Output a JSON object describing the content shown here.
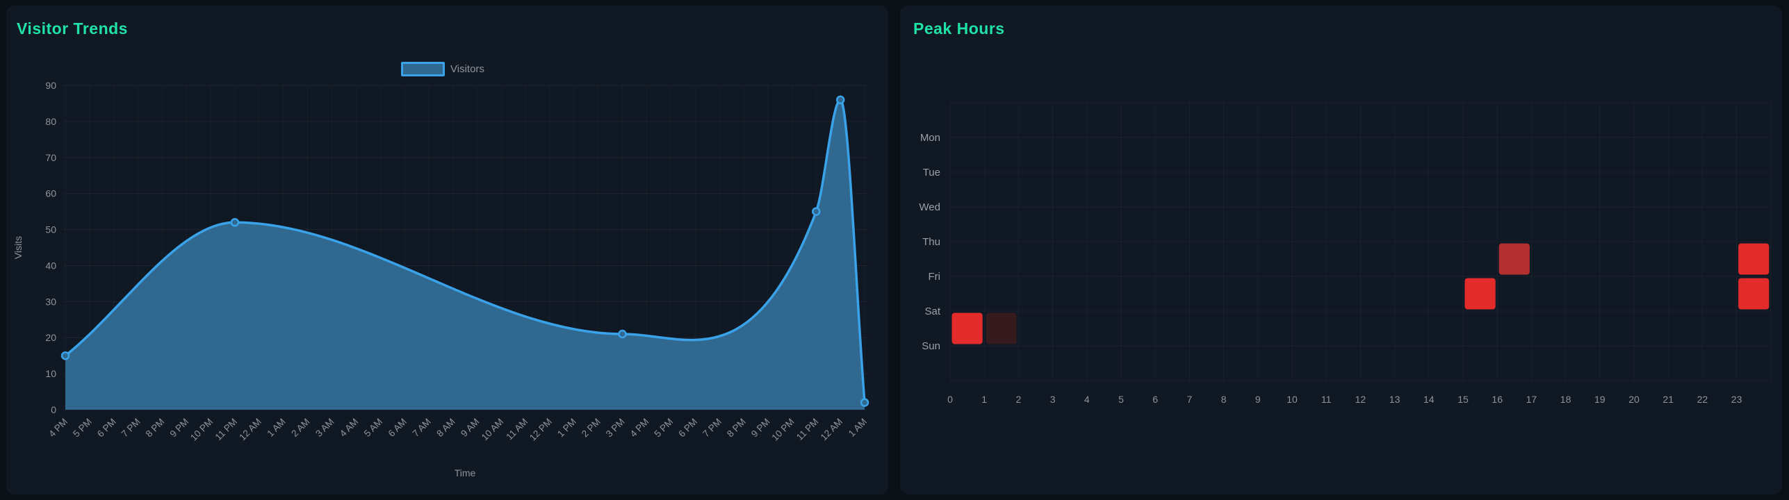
{
  "page": {
    "background": "#0b1017",
    "panel_background": "#101824",
    "title_color": "#1fe3a6",
    "axis_text_color": "#8e949c",
    "grid_color": "rgba(255,255,255,0.05)"
  },
  "chart_data": [
    {
      "type": "area",
      "title": "Visitor Trends",
      "xlabel": "Time",
      "ylabel": "Visits",
      "ylim": [
        0,
        90
      ],
      "y_ticks": [
        0,
        10,
        20,
        30,
        40,
        50,
        60,
        70,
        80,
        90
      ],
      "x_ticks": [
        "4 PM",
        "5 PM",
        "6 PM",
        "7 PM",
        "8 PM",
        "9 PM",
        "10 PM",
        "11 PM",
        "12 AM",
        "1 AM",
        "2 AM",
        "3 AM",
        "4 AM",
        "5 AM",
        "6 AM",
        "7 AM",
        "8 AM",
        "9 AM",
        "10 AM",
        "11 AM",
        "12 PM",
        "1 PM",
        "2 PM",
        "3 PM",
        "4 PM",
        "5 PM",
        "6 PM",
        "7 PM",
        "8 PM",
        "9 PM",
        "10 PM",
        "11 PM",
        "12 AM",
        "1 AM"
      ],
      "series": [
        {
          "name": "Visitors",
          "points": [
            {
              "tick_index": 0,
              "time": "4 PM",
              "value": 15
            },
            {
              "tick_index": 7,
              "time": "11 PM",
              "value": 52
            },
            {
              "tick_index": 23,
              "time": "3 PM",
              "value": 21
            },
            {
              "tick_index": 31,
              "time": "11 PM",
              "value": 55
            },
            {
              "tick_index": 32,
              "time": "12 AM",
              "value": 86
            },
            {
              "tick_index": 33,
              "time": "1 AM",
              "value": 2
            }
          ]
        }
      ],
      "colors": {
        "line": "#3aa2e9",
        "fill": "#31688f",
        "marker_fill": "#31688f"
      },
      "legend_position": "top-center",
      "grid": true
    },
    {
      "type": "heatmap",
      "title": "Peak Hours",
      "y_ticks": [
        "Mon",
        "Tue",
        "Wed",
        "Thu",
        "Fri",
        "Sat",
        "Sun"
      ],
      "x_ticks": [
        "0",
        "1",
        "2",
        "3",
        "4",
        "5",
        "6",
        "7",
        "8",
        "9",
        "10",
        "11",
        "12",
        "13",
        "14",
        "15",
        "16",
        "17",
        "18",
        "19",
        "20",
        "21",
        "22",
        "23"
      ],
      "cells": [
        {
          "day": "Sat",
          "hour": 0,
          "intensity": "high"
        },
        {
          "day": "Sat",
          "hour": 1,
          "intensity": "low"
        },
        {
          "day": "Fri",
          "hour": 15,
          "intensity": "high"
        },
        {
          "day": "Thu",
          "hour": 16,
          "intensity": "medium"
        },
        {
          "day": "Thu",
          "hour": 23,
          "intensity": "high"
        },
        {
          "day": "Fri",
          "hour": 23,
          "intensity": "high"
        }
      ],
      "intensity_colors": {
        "high": "#e22c2c",
        "medium": "#b23030",
        "low": "#351a1e"
      },
      "grid": true
    }
  ]
}
